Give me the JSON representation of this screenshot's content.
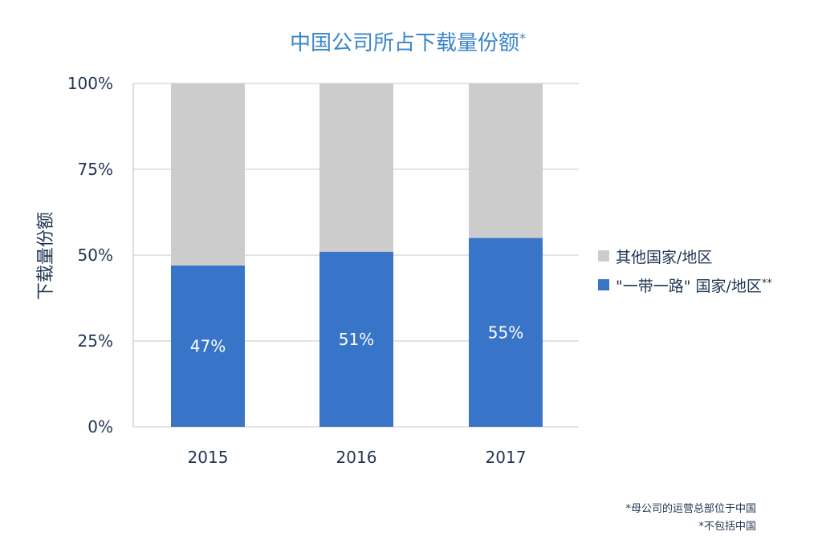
{
  "chart_data": {
    "type": "bar",
    "stacked": true,
    "title": "中国公司所占下载量份额",
    "title_marker": "*",
    "xlabel": "",
    "ylabel": "下载量份额",
    "ylim": [
      0,
      100
    ],
    "yticks": [
      0,
      25,
      50,
      75,
      100
    ],
    "ytick_labels": [
      "0%",
      "25%",
      "50%",
      "75%",
      "100%"
    ],
    "categories": [
      "2015",
      "2016",
      "2017"
    ],
    "series": [
      {
        "name": "\"一带一路\" 国家/地区",
        "name_marker": "**",
        "color": "#3874c8",
        "values": [
          47,
          51,
          55
        ],
        "labels": [
          "47%",
          "51%",
          "55%"
        ]
      },
      {
        "name": "其他国家/地区",
        "name_marker": "",
        "color": "#cdcccd",
        "values": [
          53,
          49,
          45
        ],
        "labels": [
          "",
          "",
          ""
        ]
      }
    ],
    "grid": true,
    "legend_position": "right"
  },
  "footnotes": [
    "*母公司的运营总部位于中国",
    "*不包括中国"
  ]
}
